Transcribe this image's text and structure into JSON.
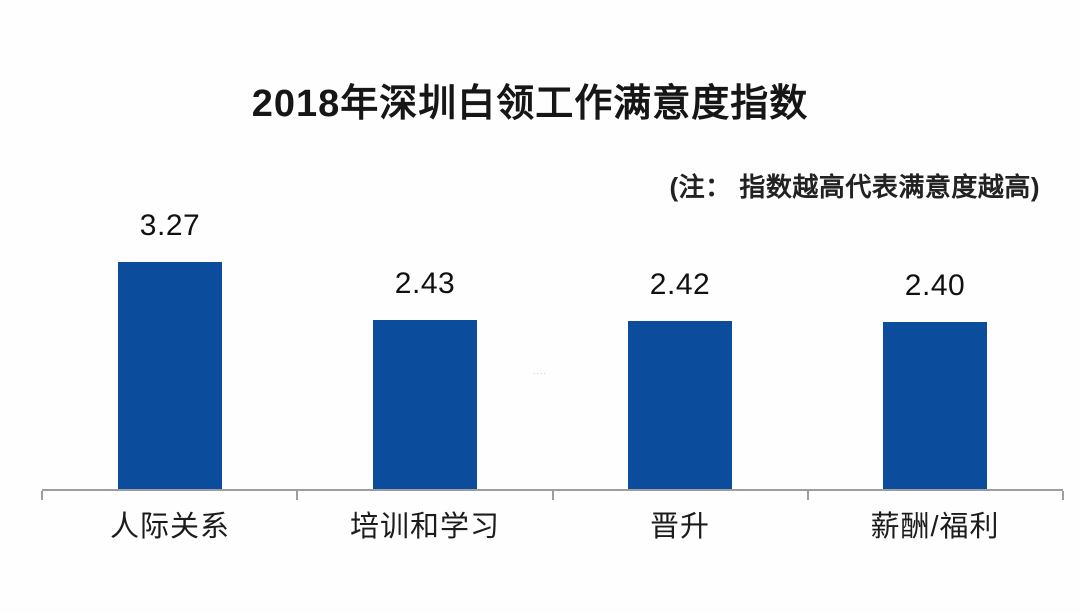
{
  "chart_data": {
    "type": "bar",
    "title": "2018年深圳白领工作满意度指数",
    "note": "(注： 指数越高代表满意度越高)",
    "categories": [
      "人际关系",
      "培训和学习",
      "晋升",
      "薪酬/福利"
    ],
    "values": [
      3.27,
      2.43,
      2.42,
      2.4
    ],
    "value_labels": [
      "3.27",
      "2.43",
      "2.42",
      "2.40"
    ],
    "xlabel": "",
    "ylabel": "",
    "ylim": [
      0,
      3.5
    ],
    "grid": false,
    "legend": null,
    "bar_color": "#0b4c9c",
    "axis_color": "#9e9e9e",
    "text_color": "#1a1a1a"
  },
  "artifact": {
    "text": "...."
  }
}
